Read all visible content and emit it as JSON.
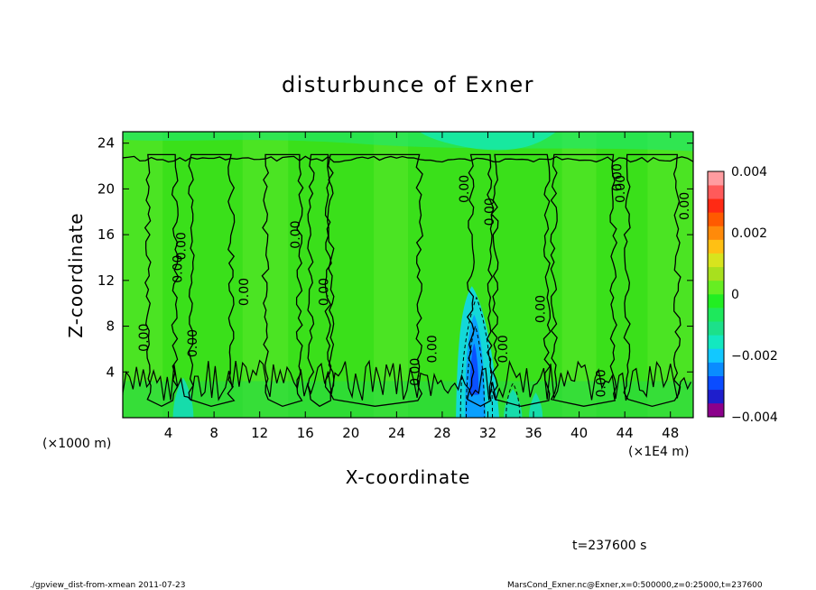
{
  "chart_data": {
    "type": "heatmap",
    "title": "disturbunce of Exner",
    "xlabel": "X-coordinate",
    "ylabel": "Z-coordinate",
    "x_unit_left": "(×1000 m)",
    "x_unit_right": "(×1E4 m)",
    "xlim": [
      0,
      50
    ],
    "ylim": [
      0,
      25
    ],
    "xticks": [
      4,
      8,
      12,
      16,
      20,
      24,
      28,
      32,
      36,
      40,
      44,
      48
    ],
    "yticks": [
      4,
      8,
      12,
      16,
      20,
      24
    ],
    "colorbar": {
      "min": -0.004,
      "max": 0.004,
      "tick_labels": [
        "0.004",
        "0.002",
        "0",
        "−0.002",
        "−0.004"
      ],
      "tick_values": [
        0.004,
        0.002,
        0,
        -0.002,
        -0.004
      ],
      "colors": [
        "#8b008b",
        "#1e1ecc",
        "#0a4cff",
        "#0a8cff",
        "#12c8ff",
        "#13e8c0",
        "#1ce08a",
        "#1ee85c",
        "#22ee22",
        "#66ee22",
        "#a8e01e",
        "#d8e41e",
        "#ffc014",
        "#ff8a0a",
        "#ff5a00",
        "#ff2a14",
        "#ff5a5a",
        "#ff9ca0"
      ]
    },
    "contour_labels": [
      "0.00",
      "0.00",
      "0.00",
      "0.00",
      "0.00",
      "0.00",
      "0.00",
      "0.00",
      "0.00",
      "0.00",
      "0.00",
      "0.00",
      "0.00",
      "0.00",
      "0.00",
      "0.00",
      "0.00"
    ],
    "time_label": "t=237600 s"
  },
  "footer": {
    "left": "./gpview_dist-from-xmean  2011-07-23",
    "right": "MarsCond_Exner.nc@Exner,x=0:500000,z=0:25000,t=237600"
  }
}
